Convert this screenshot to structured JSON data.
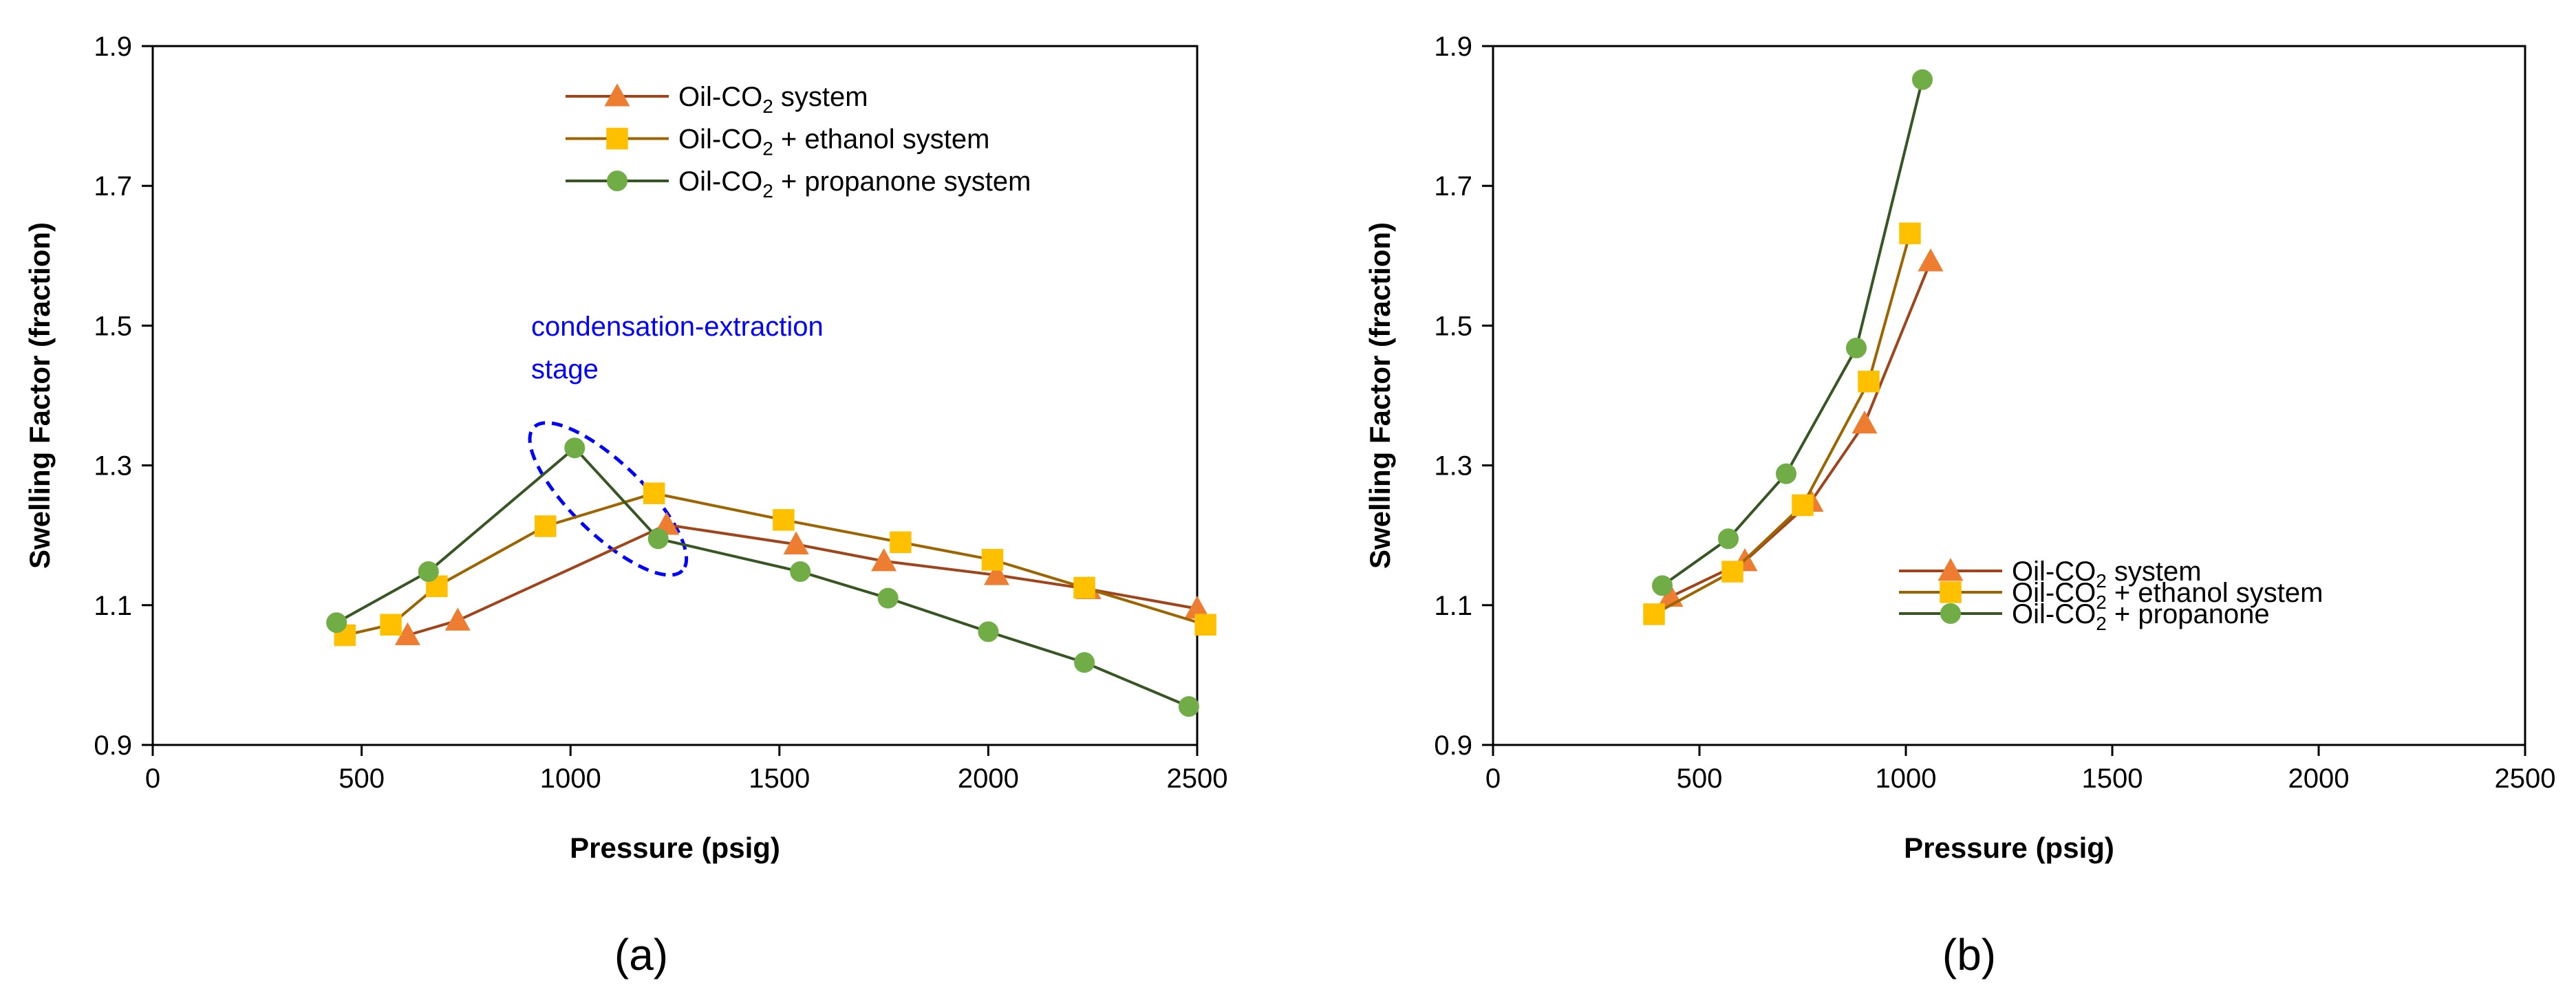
{
  "chart_data": [
    {
      "type": "line",
      "panel_label": "(a)",
      "xlabel": "Pressure (psig)",
      "ylabel": "Swelling Factor (fraction)",
      "xlim": [
        0,
        2500
      ],
      "ylim": [
        0.9,
        1.9
      ],
      "xticks": [
        "0",
        "500",
        "1000",
        "1500",
        "2000",
        "2500"
      ],
      "yticks": [
        "0.9",
        "1.1",
        "1.3",
        "1.5",
        "1.7",
        "1.9"
      ],
      "legend_position": "top-center",
      "series": [
        {
          "name": "Oil-CO₂ system",
          "legend_label": {
            "pre": "Oil-CO",
            "sub": "2",
            "post": " system"
          },
          "color": "#A0451B",
          "marker": "triangle",
          "marker_color": "#ED7D31",
          "x": [
            610,
            730,
            1230,
            1540,
            1750,
            2020,
            2240,
            2500
          ],
          "y": [
            1.057,
            1.078,
            1.215,
            1.187,
            1.163,
            1.143,
            1.123,
            1.095
          ]
        },
        {
          "name": "Oil-CO₂ + ethanol system",
          "legend_label": {
            "pre": "Oil-CO",
            "sub": "2",
            "post": " + ethanol system"
          },
          "color": "#9C6500",
          "marker": "square",
          "marker_color": "#FFC000",
          "x": [
            460,
            570,
            680,
            940,
            1200,
            1510,
            1790,
            2010,
            2230,
            2520
          ],
          "y": [
            1.057,
            1.072,
            1.127,
            1.213,
            1.26,
            1.222,
            1.19,
            1.165,
            1.125,
            1.072
          ]
        },
        {
          "name": "Oil-CO₂ + propanone system",
          "legend_label": {
            "pre": "Oil-CO",
            "sub": "2",
            "post": " + propanone system"
          },
          "color": "#375623",
          "marker": "circle",
          "marker_color": "#70AD47",
          "x": [
            440,
            660,
            1010,
            1210,
            1550,
            1760,
            2000,
            2230,
            2480
          ],
          "y": [
            1.075,
            1.148,
            1.325,
            1.195,
            1.148,
            1.11,
            1.062,
            1.018,
            0.955
          ]
        }
      ],
      "annotation": {
        "lines": [
          "condensation-extraction",
          "stage"
        ],
        "color": "#0000FF",
        "shape": "dashed-ellipse"
      }
    },
    {
      "type": "line",
      "panel_label": "(b)",
      "xlabel": "Pressure (psig)",
      "ylabel": "Swelling Factor (fraction)",
      "xlim": [
        0,
        2500
      ],
      "ylim": [
        0.9,
        1.9
      ],
      "xticks": [
        "0",
        "500",
        "1000",
        "1500",
        "2000",
        "2500"
      ],
      "yticks": [
        "0.9",
        "1.1",
        "1.3",
        "1.5",
        "1.7",
        "1.9"
      ],
      "legend_position": "bottom-right",
      "series": [
        {
          "name": "Oil-CO₂ system",
          "legend_label": {
            "pre": "Oil-CO",
            "sub": "2",
            "post": " system"
          },
          "color": "#A0451B",
          "marker": "triangle",
          "marker_color": "#ED7D31",
          "x": [
            430,
            610,
            770,
            900,
            1060
          ],
          "y": [
            1.112,
            1.163,
            1.248,
            1.36,
            1.592
          ]
        },
        {
          "name": "Oil-CO₂ + ethanol system",
          "legend_label": {
            "pre": "Oil-CO",
            "sub": "2",
            "post": " + ethanol system"
          },
          "color": "#9C6500",
          "marker": "square",
          "marker_color": "#FFC000",
          "x": [
            390,
            580,
            750,
            910,
            1010
          ],
          "y": [
            1.087,
            1.148,
            1.243,
            1.42,
            1.632
          ]
        },
        {
          "name": "Oil-CO₂ + propanone",
          "legend_label": {
            "pre": "Oil-CO",
            "sub": "2",
            "post": " + propanone"
          },
          "color": "#375623",
          "marker": "circle",
          "marker_color": "#70AD47",
          "x": [
            410,
            570,
            710,
            880,
            1040
          ],
          "y": [
            1.128,
            1.195,
            1.288,
            1.468,
            1.852
          ]
        }
      ]
    }
  ]
}
